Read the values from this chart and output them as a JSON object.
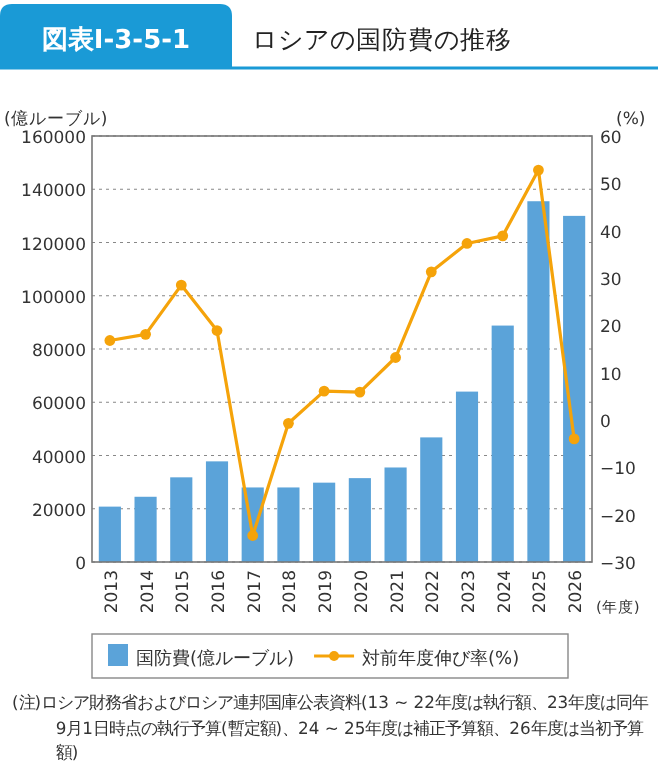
{
  "chart_data": {
    "type": "bar",
    "title": "ロシアの国防費の推移",
    "categories": [
      "2013",
      "2014",
      "2015",
      "2016",
      "2017",
      "2018",
      "2019",
      "2020",
      "2021",
      "2022",
      "2023",
      "2024",
      "2025",
      "2026"
    ],
    "series": [
      {
        "name": "国防費(億ルーブル)",
        "color": "#5ba3d9",
        "values": [
          20800,
          24500,
          31800,
          37800,
          28000,
          28000,
          29800,
          31500,
          35500,
          46800,
          64000,
          88800,
          135500,
          130000
        ]
      },
      {
        "name": "対前年度伸び率(%)",
        "type": "line",
        "axis": "y2",
        "color": "#f5a30a",
        "values": [
          16.8,
          18.1,
          28.5,
          18.9,
          -24.4,
          -0.7,
          6.1,
          5.9,
          13.2,
          31.3,
          37.3,
          38.9,
          52.8,
          -4.0
        ]
      }
    ],
    "ylabel": "(億ルーブル)",
    "y2label": "(%)",
    "xlabel": "(年度)",
    "ylim": [
      0,
      160000
    ],
    "yticks": [
      0,
      20000,
      40000,
      60000,
      80000,
      100000,
      120000,
      140000,
      160000
    ],
    "y2lim": [
      -30,
      60
    ],
    "y2ticks": [
      -30,
      -20,
      -10,
      0,
      10,
      20,
      30,
      40,
      50,
      60
    ],
    "grid": "y",
    "legend": "bottom",
    "marker": "circle",
    "annotations": [
      "図表Ⅰ-3-5-1",
      "(注)ロシア財務省およびロシア連邦国庫公表資料(13 ~ 22年度は執行額、23年度は同年9月1日時点の執行予算(暫定額)、24 ~ 25年度は補正予算額、26年度は当初予算額)"
    ]
  }
}
